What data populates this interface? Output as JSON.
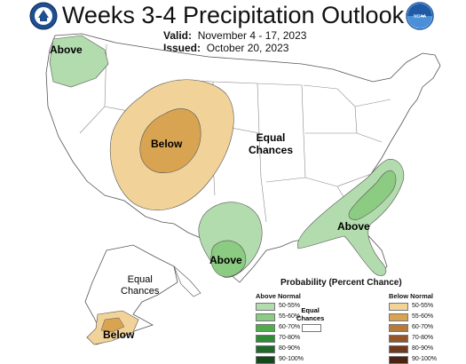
{
  "header": {
    "title": "Weeks 3-4 Precipitation Outlook",
    "valid_label": "Valid:",
    "valid_value": "November 4 - 17, 2023",
    "issued_label": "Issued:",
    "issued_value": "October 20, 2023"
  },
  "logos": {
    "left": {
      "text": "",
      "icon": "noaa-doc-seal-icon"
    },
    "right": {
      "text": "NOAA",
      "icon": "noaa-logo-icon"
    }
  },
  "map_labels": {
    "pnw_above": "Above",
    "west_below": "Below",
    "central_equal_line1": "Equal",
    "central_equal_line2": "Chances",
    "texas_above": "Above",
    "southeast_above": "Above",
    "alaska_equal_line1": "Equal",
    "alaska_equal_line2": "Chances",
    "alaska_below": "Below"
  },
  "legend": {
    "title": "Probability (Percent Chance)",
    "above_header": "Above Normal",
    "below_header": "Below Normal",
    "equal_line1": "Equal",
    "equal_line2": "Chances",
    "above_rows": [
      {
        "label": "50-55%",
        "color": "#b3dcae"
      },
      {
        "label": "55-60%",
        "color": "#8ccb82"
      },
      {
        "label": "60-70%",
        "color": "#4fae4a"
      },
      {
        "label": "70-80%",
        "color": "#2e8b36"
      },
      {
        "label": "80-90%",
        "color": "#1f6a2a"
      },
      {
        "label": "90-100%",
        "color": "#134a1a"
      }
    ],
    "below_rows": [
      {
        "label": "50-55%",
        "color": "#f1d39a"
      },
      {
        "label": "55-60%",
        "color": "#d9a452"
      },
      {
        "label": "60-70%",
        "color": "#b87a3a"
      },
      {
        "label": "70-80%",
        "color": "#93552a"
      },
      {
        "label": "80-90%",
        "color": "#6e3a1e"
      },
      {
        "label": "90-100%",
        "color": "#4a2312"
      }
    ]
  },
  "colors": {
    "above_light": "#b3dcae",
    "above_mid": "#8ccb82",
    "below_light": "#f1d39a",
    "below_mid": "#d9a452",
    "border": "#555555",
    "ocean": "#ffffff"
  }
}
